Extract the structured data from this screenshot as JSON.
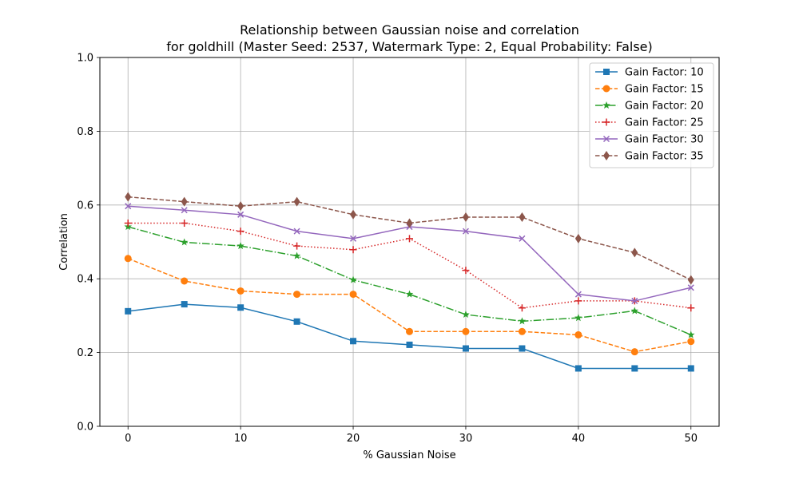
{
  "chart_data": {
    "type": "line",
    "title_line1": "Relationship between Gaussian noise and correlation",
    "title_line2": "for goldhill (Master Seed: 2537, Watermark Type: 2, Equal Probability: False)",
    "xlabel": "% Gaussian Noise",
    "ylabel": "Correlation",
    "xlim": [
      -2.5,
      52.5
    ],
    "ylim": [
      0,
      1.0
    ],
    "x": [
      0,
      5,
      10,
      15,
      20,
      25,
      30,
      35,
      40,
      45,
      50
    ],
    "x_ticks": [
      0,
      10,
      20,
      30,
      40,
      50
    ],
    "x_tick_labels": [
      "0",
      "10",
      "20",
      "30",
      "40",
      "50"
    ],
    "y_ticks": [
      0,
      0.2,
      0.4,
      0.6,
      0.8,
      1.0
    ],
    "y_tick_labels": [
      "0.0",
      "0.2",
      "0.4",
      "0.6",
      "0.8",
      "1.0"
    ],
    "grid": true,
    "legend_position": "top-right",
    "series": [
      {
        "name": "Gain Factor: 10",
        "color": "#1f77b4",
        "dash": "solid",
        "marker": "square",
        "values": [
          0.312,
          0.331,
          0.322,
          0.284,
          0.231,
          0.221,
          0.211,
          0.211,
          0.157,
          0.157,
          0.157
        ]
      },
      {
        "name": "Gain Factor: 15",
        "color": "#ff7f0e",
        "dash": "dashed",
        "marker": "circle",
        "values": [
          0.455,
          0.394,
          0.367,
          0.358,
          0.358,
          0.257,
          0.257,
          0.257,
          0.248,
          0.202,
          0.23
        ]
      },
      {
        "name": "Gain Factor: 20",
        "color": "#2ca02c",
        "dash": "dashdot",
        "marker": "star",
        "values": [
          0.541,
          0.499,
          0.489,
          0.462,
          0.397,
          0.358,
          0.303,
          0.285,
          0.294,
          0.313,
          0.248
        ]
      },
      {
        "name": "Gain Factor: 25",
        "color": "#d62728",
        "dash": "dotted",
        "marker": "plus",
        "values": [
          0.551,
          0.551,
          0.529,
          0.489,
          0.479,
          0.509,
          0.423,
          0.321,
          0.34,
          0.34,
          0.321
        ]
      },
      {
        "name": "Gain Factor: 30",
        "color": "#9467bd",
        "dash": "solid",
        "marker": "x",
        "values": [
          0.597,
          0.586,
          0.574,
          0.529,
          0.509,
          0.541,
          0.529,
          0.509,
          0.358,
          0.34,
          0.376
        ]
      },
      {
        "name": "Gain Factor: 35",
        "color": "#8c564b",
        "dash": "dashed",
        "marker": "diamond",
        "values": [
          0.622,
          0.609,
          0.597,
          0.609,
          0.574,
          0.551,
          0.567,
          0.567,
          0.509,
          0.471,
          0.397
        ]
      }
    ]
  }
}
